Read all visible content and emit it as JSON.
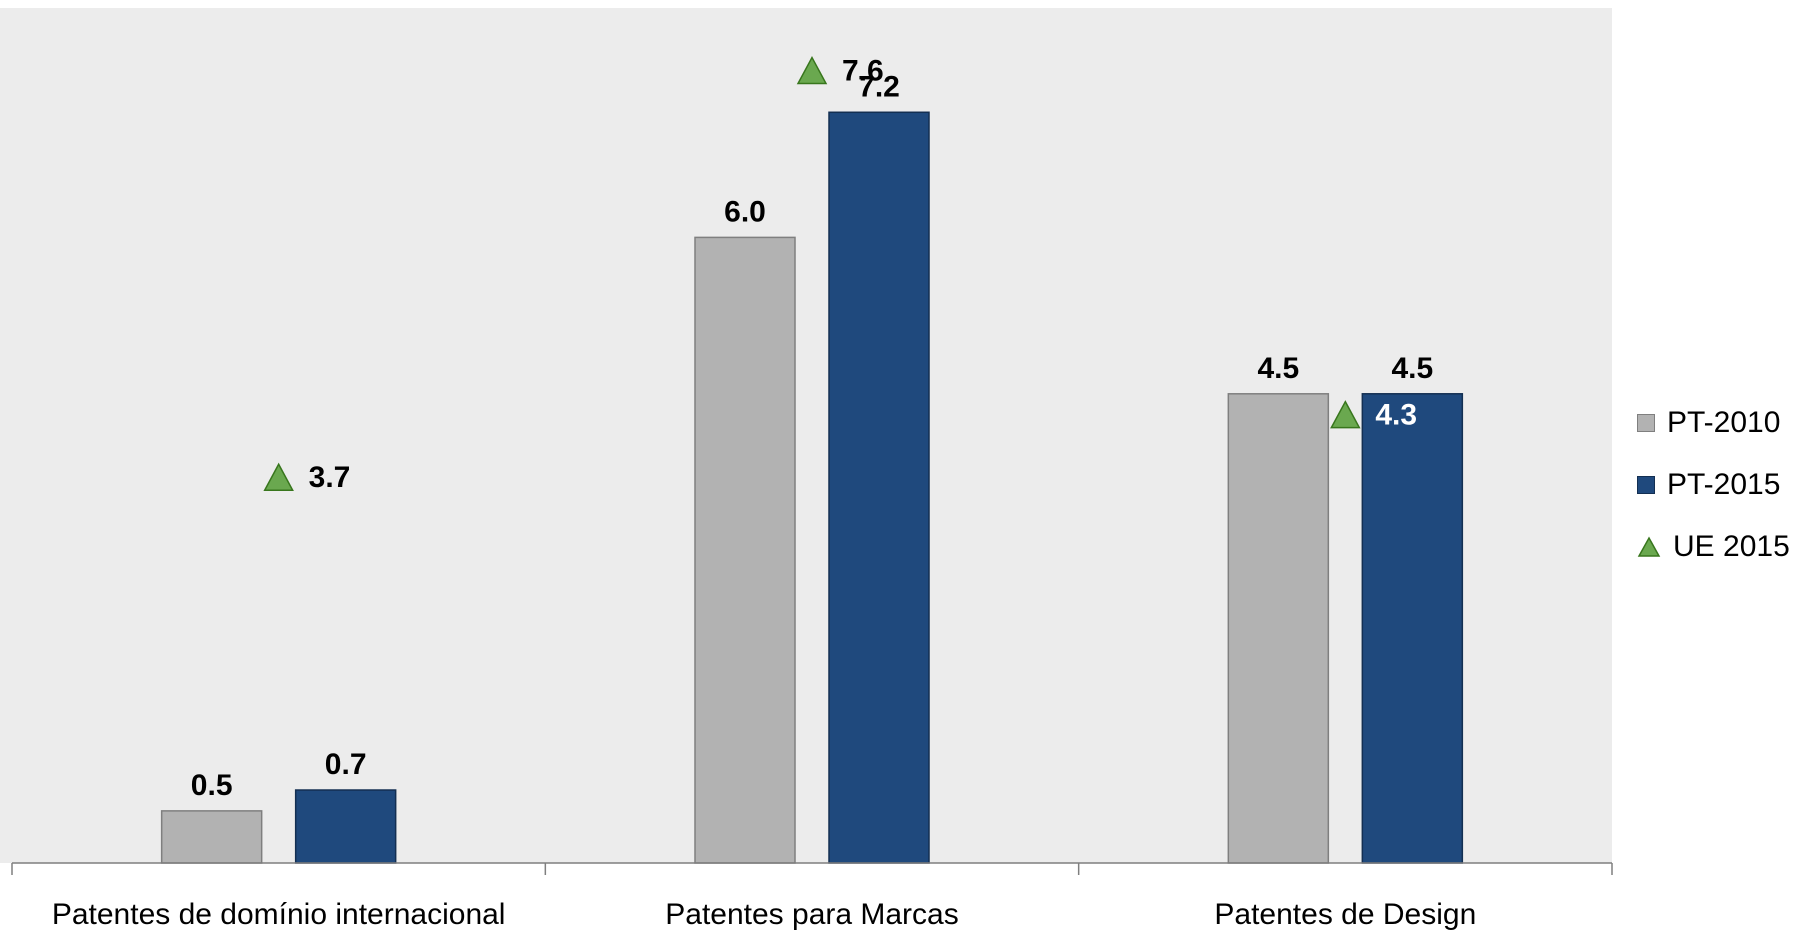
{
  "chart_data": {
    "type": "bar",
    "categories": [
      "Patentes de domínio internacional",
      "Patentes para Marcas",
      "Patentes de Design"
    ],
    "series": [
      {
        "name": "PT-2010",
        "values": [
          0.5,
          6.0,
          4.5
        ],
        "labels": [
          "0.5",
          "6.0",
          "4.5"
        ],
        "color": "#b2b2b2",
        "border": "#7f7f7f"
      },
      {
        "name": "PT-2015",
        "values": [
          0.7,
          7.2,
          4.5
        ],
        "labels": [
          "0.7",
          "7.2",
          "4.5"
        ],
        "color": "#1f497d",
        "border": "#132f52"
      }
    ],
    "markers": {
      "name": "UE 2015",
      "values": [
        3.7,
        7.6,
        4.3
      ],
      "labels": [
        "3.7",
        "7.6",
        "4.3"
      ],
      "color": "#6aa84f",
      "border": "#38761d"
    },
    "ylim": [
      0,
      8.2
    ],
    "grid": false,
    "legend_position": "right",
    "background": "#ececec"
  }
}
